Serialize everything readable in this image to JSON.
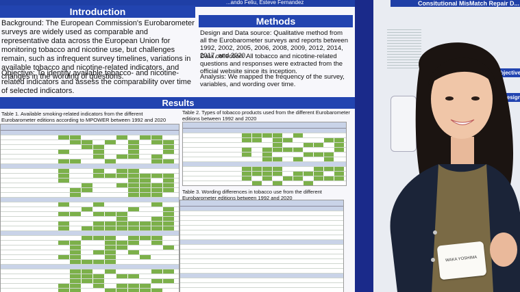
{
  "poster": {
    "authors": "...ando Feliu, Esteve Fernandez",
    "intro_title": "Introduction",
    "methods_title": "Methods",
    "results_title": "Results",
    "background": "Background: The European Commission's Eurobarometer surveys are widely used as comparable and representative data across the European Union for monitoring tobacco and nicotine use, but challenges remain, such as infrequent survey timelines, variations in available tobacco and nicotine-related indicators, and changes in the wording of questions.",
    "objective": "Objective: To identify available tobacco- and nicotine-related indicators and assess the comparability over time of selected indicators.",
    "design": "Design and Data source: Qualitative method from all the Eurobarometer surveys and reports between 1992, 2002, 2005, 2006, 2008, 2009, 2012, 2014, 2017, and 2020.",
    "collection": "Data collection: All tobacco and nicotine-related questions and responses were extracted from the official website since its inception.",
    "analysis": "Analysis: We mapped the frequency of the survey, variables, and wording over time.",
    "table1_caption": "Table 1. Available smoking-related indicators from the different Eurobarometer editions according to MPOWER between 1992 and 2020",
    "table2_caption": "Table 2. Types of tobacco products used from the different Eurobarometer editions between 1992 and 2020",
    "table3_caption": "Table 3. Wording differences in tobacco use from the different Eurobarometer editions between 1992 and 2020"
  },
  "right_poster": {
    "title": "Consitutional MisMatch Repair D...",
    "objective": "Objective",
    "design": "Design"
  },
  "badge": {
    "name": "WAKA YOSHIMA"
  }
}
